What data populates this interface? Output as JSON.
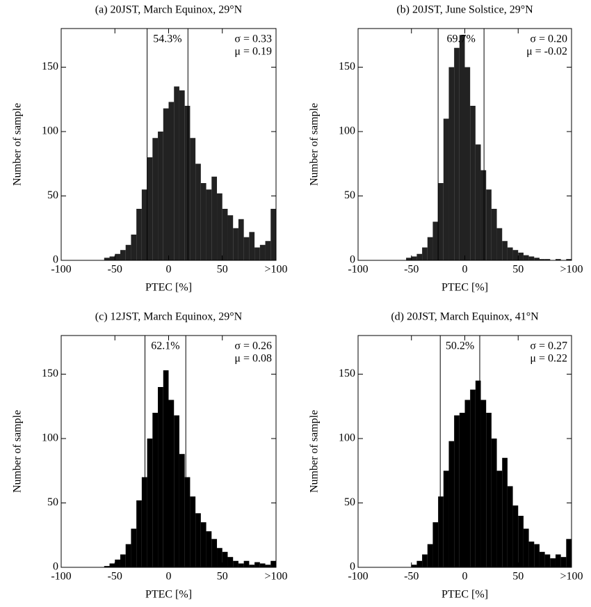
{
  "chart_data": [
    {
      "type": "histogram",
      "title": "(a) 20JST, March Equinox, 29°N",
      "xlabel": "PTEC [%]",
      "ylabel": "Number of sample",
      "bins": [
        -100,
        -95,
        -90,
        -85,
        -80,
        -75,
        -70,
        -65,
        -60,
        -55,
        -50,
        -45,
        -40,
        -35,
        -30,
        -25,
        -20,
        -15,
        -10,
        -5,
        0,
        5,
        10,
        15,
        20,
        25,
        30,
        35,
        40,
        45,
        50,
        55,
        60,
        65,
        70,
        75,
        80,
        85,
        90,
        95,
        100
      ],
      "values": [
        0,
        0,
        0,
        0,
        0,
        0,
        0,
        0,
        2,
        3,
        5,
        8,
        12,
        20,
        40,
        55,
        80,
        95,
        100,
        118,
        123,
        135,
        132,
        120,
        95,
        75,
        60,
        55,
        65,
        52,
        40,
        35,
        25,
        32,
        18,
        22,
        10,
        12,
        15,
        40
      ],
      "color": "#222222",
      "xlim": [
        -100,
        100
      ],
      "ylim": [
        0,
        180
      ],
      "xticks": [
        -100,
        -50,
        0,
        50,
        {
          "value": 100,
          "label": ">100"
        }
      ],
      "yticks": [
        0,
        50,
        100,
        150
      ],
      "vlines": [
        -20,
        18
      ],
      "annotations": [
        "54.3%",
        "σ = 0.33",
        "μ = 0.19"
      ]
    },
    {
      "type": "histogram",
      "title": "(b) 20JST, June Solstice, 29°N",
      "xlabel": "PTEC [%]",
      "ylabel": "Number of sample",
      "bins": [
        -100,
        -95,
        -90,
        -85,
        -80,
        -75,
        -70,
        -65,
        -60,
        -55,
        -50,
        -45,
        -40,
        -35,
        -30,
        -25,
        -20,
        -15,
        -10,
        -5,
        0,
        5,
        10,
        15,
        20,
        25,
        30,
        35,
        40,
        45,
        50,
        55,
        60,
        65,
        70,
        75,
        80,
        85,
        90,
        95,
        100
      ],
      "values": [
        0,
        0,
        0,
        0,
        0,
        0,
        0,
        0,
        0,
        2,
        3,
        5,
        10,
        18,
        30,
        60,
        110,
        150,
        165,
        175,
        150,
        120,
        90,
        70,
        55,
        40,
        25,
        15,
        10,
        8,
        6,
        4,
        3,
        2,
        1,
        1,
        0,
        1,
        0,
        1
      ],
      "color": "#222222",
      "xlim": [
        -100,
        100
      ],
      "ylim": [
        0,
        180
      ],
      "xticks": [
        -100,
        -50,
        0,
        50,
        {
          "value": 100,
          "label": ">100"
        }
      ],
      "yticks": [
        0,
        50,
        100,
        150
      ],
      "vlines": [
        -25,
        18
      ],
      "annotations": [
        "69.7%",
        "σ = 0.20",
        "μ = -0.02"
      ]
    },
    {
      "type": "histogram",
      "title": "(c) 12JST, March Equinox, 29°N",
      "xlabel": "PTEC [%]",
      "ylabel": "Number of sample",
      "bins": [
        -100,
        -95,
        -90,
        -85,
        -80,
        -75,
        -70,
        -65,
        -60,
        -55,
        -50,
        -45,
        -40,
        -35,
        -30,
        -25,
        -20,
        -15,
        -10,
        -5,
        0,
        5,
        10,
        15,
        20,
        25,
        30,
        35,
        40,
        45,
        50,
        55,
        60,
        65,
        70,
        75,
        80,
        85,
        90,
        95,
        100
      ],
      "values": [
        0,
        0,
        0,
        0,
        0,
        0,
        0,
        0,
        1,
        3,
        6,
        10,
        18,
        30,
        52,
        70,
        100,
        120,
        140,
        153,
        130,
        118,
        88,
        70,
        55,
        42,
        35,
        28,
        22,
        15,
        12,
        8,
        5,
        3,
        5,
        2,
        4,
        3,
        2,
        5
      ],
      "color": "#000000",
      "xlim": [
        -100,
        100
      ],
      "ylim": [
        0,
        180
      ],
      "xticks": [
        -100,
        -50,
        0,
        50,
        {
          "value": 100,
          "label": ">100"
        }
      ],
      "yticks": [
        0,
        50,
        100,
        150
      ],
      "vlines": [
        -22,
        16
      ],
      "annotations": [
        "62.1%",
        "σ = 0.26",
        "μ = 0.08"
      ]
    },
    {
      "type": "histogram",
      "title": "(d) 20JST, March Equinox, 41°N",
      "xlabel": "PTEC [%]",
      "ylabel": "Number of sample",
      "bins": [
        -100,
        -95,
        -90,
        -85,
        -80,
        -75,
        -70,
        -65,
        -60,
        -55,
        -50,
        -45,
        -40,
        -35,
        -30,
        -25,
        -20,
        -15,
        -10,
        -5,
        0,
        5,
        10,
        15,
        20,
        25,
        30,
        35,
        40,
        45,
        50,
        55,
        60,
        65,
        70,
        75,
        80,
        85,
        90,
        95,
        100
      ],
      "values": [
        0,
        0,
        0,
        0,
        0,
        0,
        0,
        0,
        0,
        0,
        2,
        5,
        10,
        18,
        35,
        55,
        75,
        98,
        118,
        120,
        130,
        138,
        145,
        130,
        120,
        100,
        75,
        85,
        63,
        48,
        40,
        30,
        20,
        18,
        12,
        10,
        7,
        10,
        8,
        22
      ],
      "color": "#000000",
      "xlim": [
        -100,
        100
      ],
      "ylim": [
        0,
        180
      ],
      "xticks": [
        -100,
        -50,
        0,
        50,
        {
          "value": 100,
          "label": ">100"
        }
      ],
      "yticks": [
        0,
        50,
        100,
        150
      ],
      "vlines": [
        -23,
        14
      ],
      "annotations": [
        "50.2%",
        "σ = 0.27",
        "μ = 0.22"
      ]
    }
  ]
}
